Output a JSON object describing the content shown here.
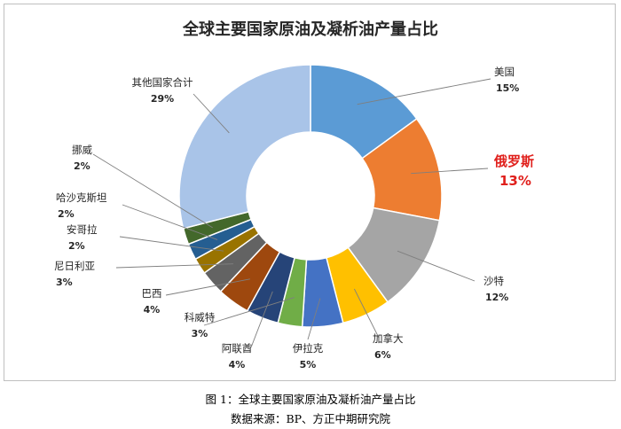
{
  "chart_data": {
    "type": "pie",
    "title": "全球主要国家原油及凝析油产量占比",
    "donut": true,
    "categories": [
      "美国",
      "俄罗斯",
      "沙特",
      "加拿大",
      "伊拉克",
      "科威特",
      "阿联酋",
      "巴西",
      "尼日利亚",
      "安哥拉",
      "哈沙克斯坦",
      "挪威",
      "其他国家合计"
    ],
    "values": [
      15,
      13,
      12,
      6,
      5,
      3,
      4,
      4,
      3,
      2,
      2,
      2,
      29
    ],
    "value_labels": [
      "15%",
      "13%",
      "12%",
      "6%",
      "5%",
      "3%",
      "4%",
      "4%",
      "3%",
      "2%",
      "2%",
      "2%",
      "29%"
    ],
    "colors": [
      "#5b9bd5",
      "#ed7d31",
      "#a5a5a5",
      "#ffc000",
      "#4472c4",
      "#70ad47",
      "#264478",
      "#9e480e",
      "#636363",
      "#997300",
      "#255e91",
      "#43682b",
      "#a9c4e8"
    ],
    "highlight": "俄罗斯",
    "highlight_color": "#e0201c",
    "legend": "none"
  },
  "caption": {
    "figure": "图 1：全球主要国家原油及凝析油产量占比",
    "source": "数据来源：BP、方正中期研究院"
  }
}
